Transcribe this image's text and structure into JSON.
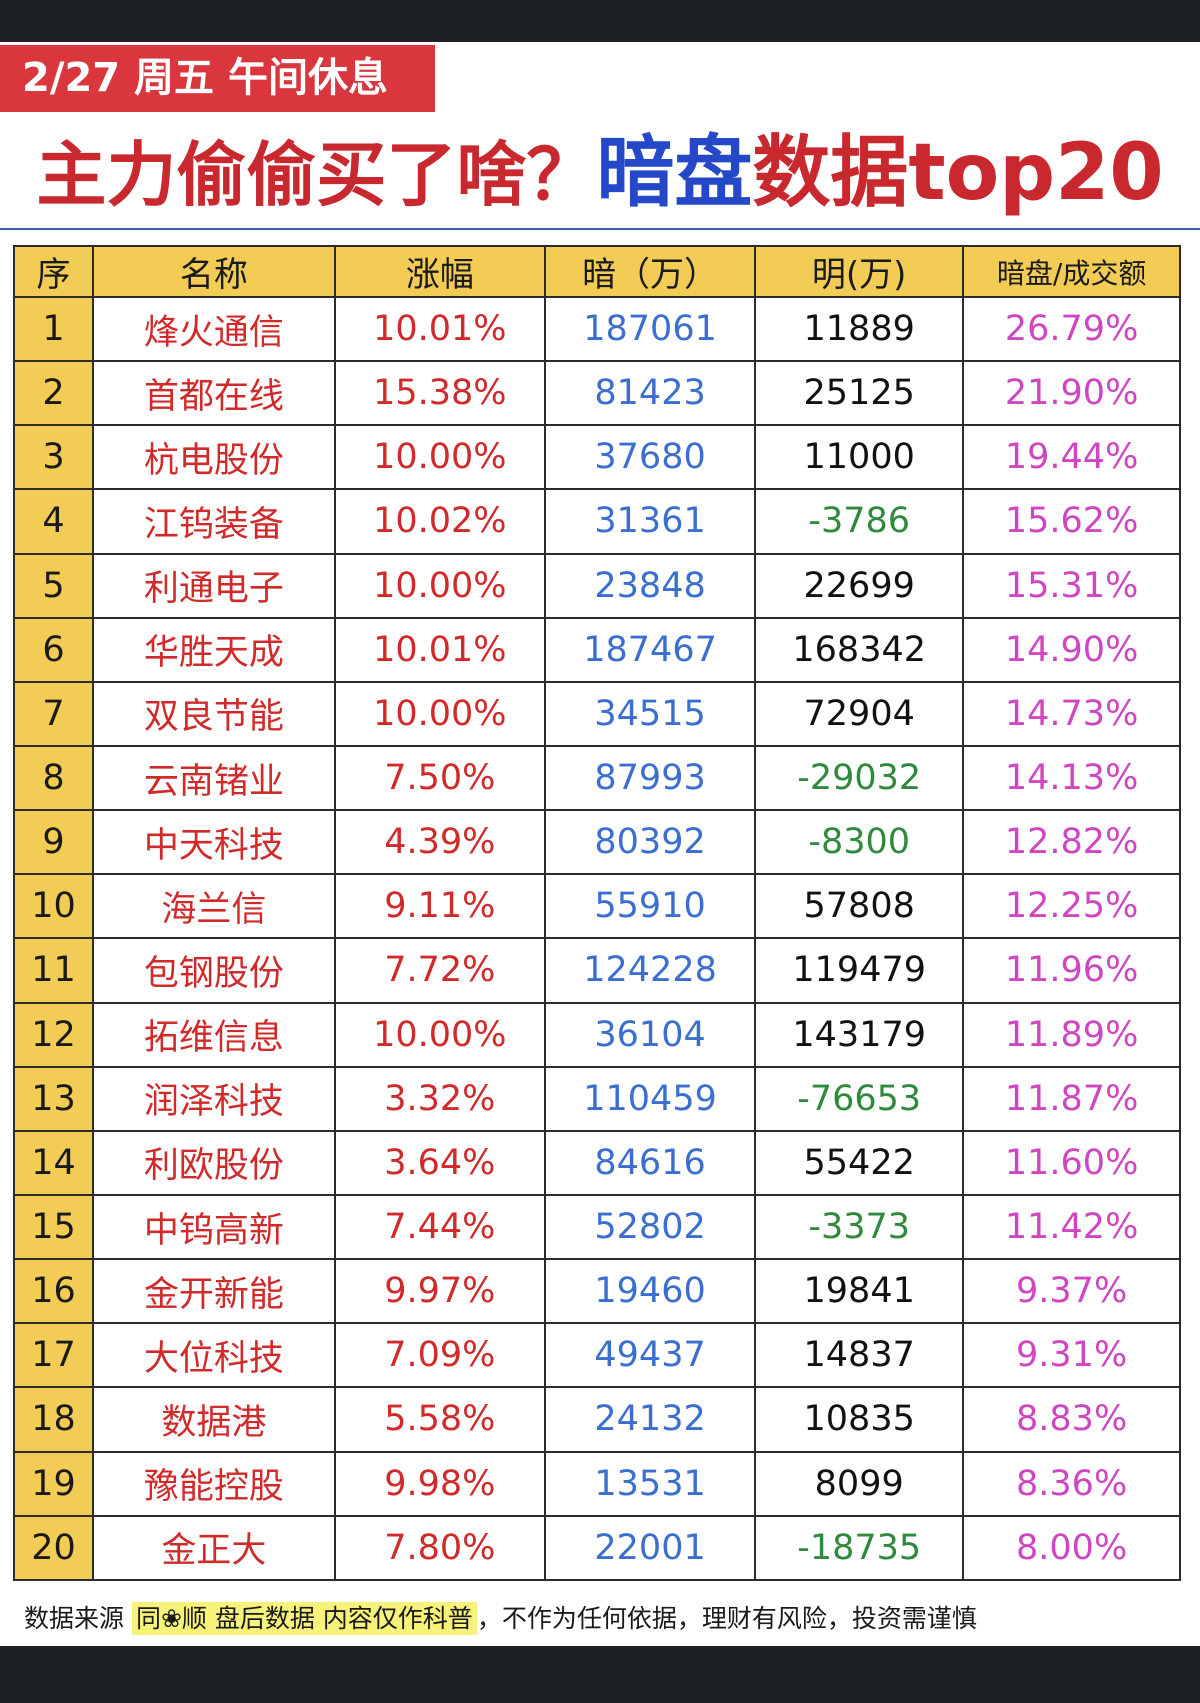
{
  "banner": {
    "date_text": "2/27 周五  午间休息"
  },
  "headline": {
    "part1": "主力偷偷买了啥？",
    "part2": "暗盘",
    "part3": "数据top20"
  },
  "table": {
    "headers": [
      "序",
      "名称",
      "涨幅",
      "暗（万）",
      "明(万)",
      "暗盘/成交额"
    ],
    "rows": [
      [
        "1",
        "烽火通信",
        "10.01%",
        "187061",
        "11889",
        "26.79%"
      ],
      [
        "2",
        "首都在线",
        "15.38%",
        "81423",
        "25125",
        "21.90%"
      ],
      [
        "3",
        "杭电股份",
        "10.00%",
        "37680",
        "11000",
        "19.44%"
      ],
      [
        "4",
        "江钨装备",
        "10.02%",
        "31361",
        "-3786",
        "15.62%"
      ],
      [
        "5",
        "利通电子",
        "10.00%",
        "23848",
        "22699",
        "15.31%"
      ],
      [
        "6",
        "华胜天成",
        "10.01%",
        "187467",
        "168342",
        "14.90%"
      ],
      [
        "7",
        "双良节能",
        "10.00%",
        "34515",
        "72904",
        "14.73%"
      ],
      [
        "8",
        "云南锗业",
        "7.50%",
        "87993",
        "-29032",
        "14.13%"
      ],
      [
        "9",
        "中天科技",
        "4.39%",
        "80392",
        "-8300",
        "12.82%"
      ],
      [
        "10",
        "海兰信",
        "9.11%",
        "55910",
        "57808",
        "12.25%"
      ],
      [
        "11",
        "包钢股份",
        "7.72%",
        "124228",
        "119479",
        "11.96%"
      ],
      [
        "12",
        "拓维信息",
        "10.00%",
        "36104",
        "143179",
        "11.89%"
      ],
      [
        "13",
        "润泽科技",
        "3.32%",
        "110459",
        "-76653",
        "11.87%"
      ],
      [
        "14",
        "利欧股份",
        "3.64%",
        "84616",
        "55422",
        "11.60%"
      ],
      [
        "15",
        "中钨高新",
        "7.44%",
        "52802",
        "-3373",
        "11.42%"
      ],
      [
        "16",
        "金开新能",
        "9.97%",
        "19460",
        "19841",
        "9.37%"
      ],
      [
        "17",
        "大位科技",
        "7.09%",
        "49437",
        "14837",
        "9.31%"
      ],
      [
        "18",
        "数据港",
        "5.58%",
        "24132",
        "10835",
        "8.83%"
      ],
      [
        "19",
        "豫能控股",
        "9.98%",
        "13531",
        "8099",
        "8.36%"
      ],
      [
        "20",
        "金正大",
        "7.80%",
        "22001",
        "-18735",
        "8.00%"
      ]
    ]
  },
  "footer": {
    "prefix": "数据来源",
    "source": "同❀顺  盘后数据  内容仅作科普",
    "suffix": "，不作为任何依据，理财有风险，投资需谨慎"
  },
  "colors": {
    "banner_red": "#d9363e",
    "title_red": "#c8282e",
    "title_blue": "#2448c8",
    "header_yellow": "#f3cc56",
    "name_red": "#d12a2a",
    "dark_blue": "#3a6fd0",
    "negative_green": "#2f8a3c",
    "ratio_magenta": "#d046c2",
    "footer_highlight": "#f7f27a"
  }
}
